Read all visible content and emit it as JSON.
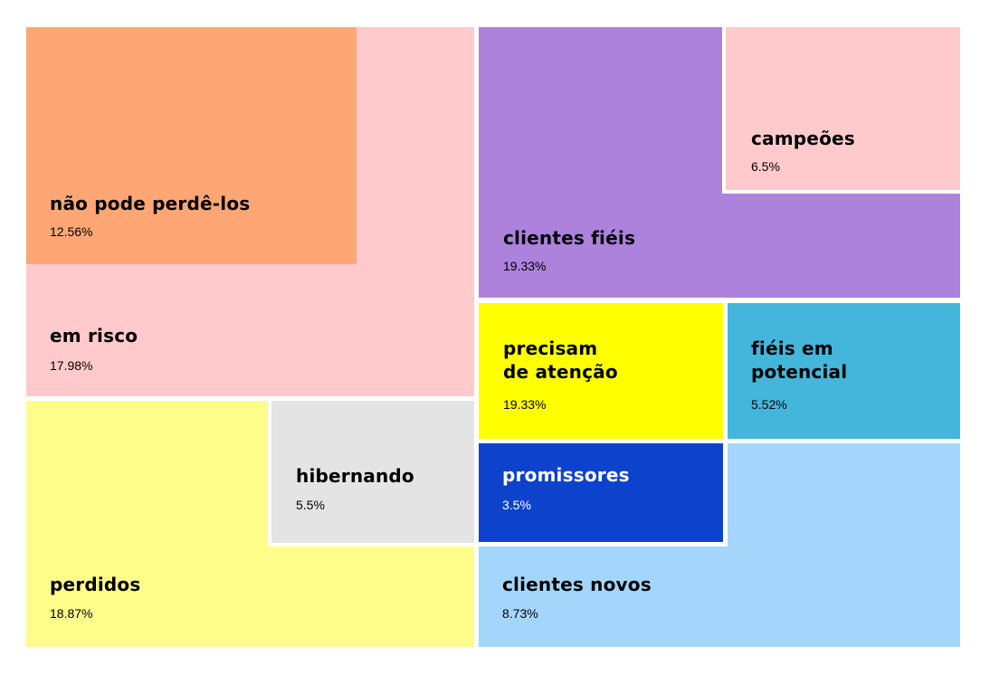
{
  "segments": {
    "nao_pode_perde_los": {
      "label": "não pode perdê-los",
      "percent": "12.56%",
      "color": "#ffa774"
    },
    "em_risco": {
      "label": "em risco",
      "percent": "17.98%",
      "color": "#ffcacb"
    },
    "perdidos": {
      "label": "perdidos",
      "percent": "18.87%",
      "color": "#fefd8a"
    },
    "hibernando": {
      "label": "hibernando",
      "percent": "5.5%",
      "color": "#e4e4e4"
    },
    "clientes_fieis": {
      "label": "clientes fiéis",
      "percent": "19.33%",
      "color": "#ac82dc"
    },
    "campeoes": {
      "label": "campeões",
      "percent": "6.5%",
      "color": "#ffcacb"
    },
    "precisam_de_atencao": {
      "label": "precisam\nde atenção",
      "percent": "19.33%",
      "color": "#ffff00"
    },
    "fieis_em_potencial": {
      "label": "fiéis em\npotencial",
      "percent": "5.52%",
      "color": "#44b6dc"
    },
    "promissores": {
      "label": "promissores",
      "percent": "3.5%",
      "color": "#0d43cc"
    },
    "clientes_novos": {
      "label": "clientes novos",
      "percent": "8.73%",
      "color": "#a4d6fb"
    }
  }
}
